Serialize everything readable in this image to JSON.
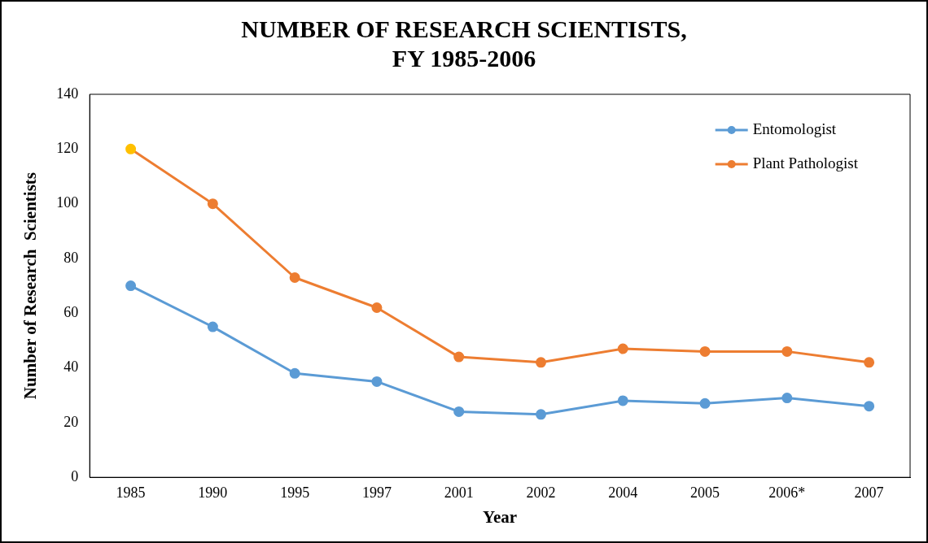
{
  "chart_data": {
    "type": "line",
    "title": "NUMBER OF RESEARCH SCIENTISTS, FY 1985-2006",
    "xlabel": "Year",
    "ylabel": "Number of Research  Scientists",
    "categories": [
      "1985",
      "1990",
      "1995",
      "1997",
      "2001",
      "2002",
      "2004",
      "2005",
      "2006*",
      "2007"
    ],
    "series": [
      {
        "name": "Entomologist",
        "color": "#5b9bd5",
        "values": [
          70,
          55,
          38,
          35,
          24,
          23,
          28,
          27,
          29,
          26
        ]
      },
      {
        "name": "Plant Pathologist",
        "color": "#ed7d31",
        "colors": [
          "#ffc000",
          "#ed7d31",
          "#ed7d31",
          "#ed7d31",
          "#ed7d31",
          "#ed7d31",
          "#ed7d31",
          "#ed7d31",
          "#ed7d31",
          "#ed7d31"
        ],
        "values": [
          120,
          100,
          73,
          62,
          44,
          42,
          47,
          46,
          46,
          42
        ]
      }
    ],
    "ylim": [
      0,
      140
    ],
    "yticks": [
      0,
      20,
      40,
      60,
      80,
      100,
      120,
      140
    ],
    "grid": false,
    "legend": "top right",
    "marker": "circle",
    "line_style": "solid"
  }
}
